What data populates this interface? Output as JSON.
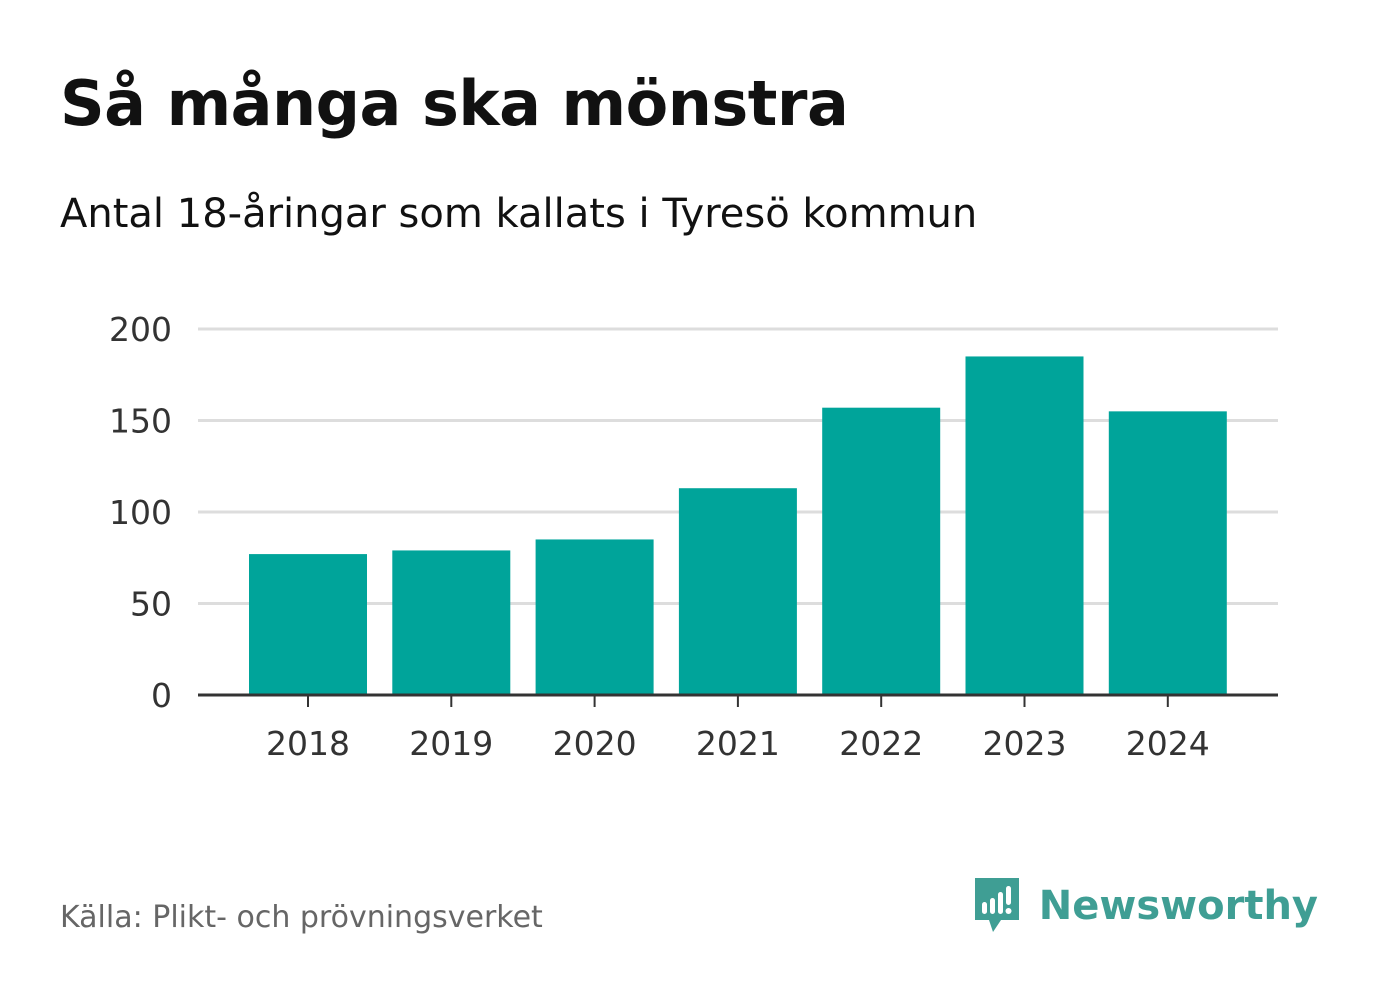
{
  "title": "Så många ska mönstra",
  "subtitle": "Antal 18-åringar som kallats i Tyresö kommun",
  "source": "Källa: Plikt- och prövningsverket",
  "brand": {
    "name": "Newsworthy",
    "icon": "chat-bubble-bar-chart-icon",
    "color": "#3f9e94"
  },
  "colors": {
    "bar": "#00a49a",
    "grid": "#dddddd",
    "axis": "#333333",
    "tick_text": "#333333"
  },
  "chart_data": {
    "type": "bar",
    "title": "Så många ska mönstra",
    "subtitle": "Antal 18-åringar som kallats i Tyresö kommun",
    "xlabel": "",
    "ylabel": "",
    "categories": [
      "2018",
      "2019",
      "2020",
      "2021",
      "2022",
      "2023",
      "2024"
    ],
    "values": [
      77,
      79,
      85,
      113,
      157,
      185,
      155
    ],
    "ylim": [
      0,
      200
    ],
    "yticks": [
      0,
      50,
      100,
      150,
      200
    ],
    "ytick_labels": [
      "0",
      "50",
      "100",
      "150",
      "200"
    ],
    "grid": true,
    "legend": "none"
  }
}
